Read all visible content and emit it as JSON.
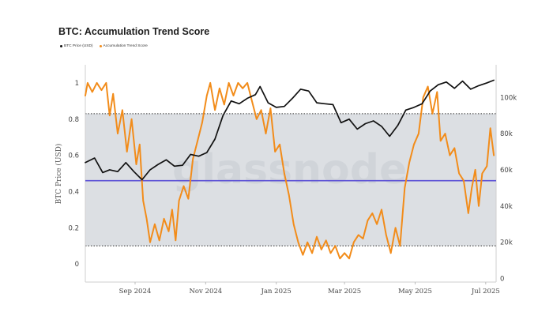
{
  "chart_data": {
    "type": "line",
    "title": "BTC: Accumulation Trend Score",
    "ylabel": "BTC Price (USD)",
    "watermark": "glassnode",
    "legend_placement": "top-left",
    "x_range": [
      "2024-07-20",
      "2025-07-10"
    ],
    "x_ticks": [
      {
        "date": "2024-09-01",
        "label": "Sep 2024"
      },
      {
        "date": "2024-11-01",
        "label": "Nov 2024"
      },
      {
        "date": "2025-01-01",
        "label": "Jan 2025"
      },
      {
        "date": "2025-03-01",
        "label": "Mar 2025"
      },
      {
        "date": "2025-05-01",
        "label": "May 2025"
      },
      {
        "date": "2025-07-01",
        "label": "Jul 2025"
      }
    ],
    "y_left": {
      "range": [
        -0.1,
        1.1
      ],
      "ticks": [
        0,
        0.2,
        0.4,
        0.6,
        0.8,
        1
      ]
    },
    "y_right": {
      "range": [
        -2000,
        118000
      ],
      "ticks": [
        {
          "value": 0,
          "label": "0"
        },
        {
          "value": 20000,
          "label": "20k"
        },
        {
          "value": 40000,
          "label": "40k"
        },
        {
          "value": 60000,
          "label": "60k"
        },
        {
          "value": 80000,
          "label": "80k"
        },
        {
          "value": 100000,
          "label": "100k"
        }
      ]
    },
    "band": {
      "lower": 0.1,
      "upper": 0.83,
      "color": "#dcdfe3"
    },
    "reference_line": {
      "value": 0.46,
      "color": "#5a4fd6"
    },
    "series": [
      {
        "name": "BTC Price (USD)",
        "axis": "right",
        "color": "#111111",
        "points": [
          [
            "2024-07-20",
            64000
          ],
          [
            "2024-07-28",
            66500
          ],
          [
            "2024-08-04",
            58500
          ],
          [
            "2024-08-10",
            60000
          ],
          [
            "2024-08-17",
            59000
          ],
          [
            "2024-08-24",
            64000
          ],
          [
            "2024-08-31",
            59000
          ],
          [
            "2024-09-07",
            54500
          ],
          [
            "2024-09-14",
            60000
          ],
          [
            "2024-09-21",
            63000
          ],
          [
            "2024-09-28",
            65500
          ],
          [
            "2024-10-05",
            62000
          ],
          [
            "2024-10-12",
            62500
          ],
          [
            "2024-10-19",
            68500
          ],
          [
            "2024-10-26",
            67500
          ],
          [
            "2024-11-02",
            69500
          ],
          [
            "2024-11-09",
            77000
          ],
          [
            "2024-11-16",
            90000
          ],
          [
            "2024-11-23",
            98000
          ],
          [
            "2024-11-30",
            96500
          ],
          [
            "2024-12-07",
            99500
          ],
          [
            "2024-12-14",
            101500
          ],
          [
            "2024-12-18",
            106000
          ],
          [
            "2024-12-25",
            97000
          ],
          [
            "2025-01-01",
            94500
          ],
          [
            "2025-01-08",
            95000
          ],
          [
            "2025-01-15",
            99500
          ],
          [
            "2025-01-22",
            104500
          ],
          [
            "2025-01-29",
            103500
          ],
          [
            "2025-02-05",
            97000
          ],
          [
            "2025-02-12",
            96500
          ],
          [
            "2025-02-19",
            96000
          ],
          [
            "2025-02-26",
            86000
          ],
          [
            "2025-03-05",
            88000
          ],
          [
            "2025-03-12",
            82500
          ],
          [
            "2025-03-19",
            85500
          ],
          [
            "2025-03-26",
            87000
          ],
          [
            "2025-04-02",
            84000
          ],
          [
            "2025-04-09",
            78500
          ],
          [
            "2025-04-16",
            84500
          ],
          [
            "2025-04-23",
            93000
          ],
          [
            "2025-04-30",
            94500
          ],
          [
            "2025-05-07",
            96500
          ],
          [
            "2025-05-14",
            103500
          ],
          [
            "2025-05-21",
            107000
          ],
          [
            "2025-05-28",
            108500
          ],
          [
            "2025-06-04",
            105000
          ],
          [
            "2025-06-11",
            109000
          ],
          [
            "2025-06-18",
            104500
          ],
          [
            "2025-06-25",
            106500
          ],
          [
            "2025-07-02",
            108000
          ],
          [
            "2025-07-08",
            109500
          ]
        ]
      },
      {
        "name": "Accumulation Trend Score",
        "axis": "left",
        "color": "#f28c1a",
        "points": [
          [
            "2024-07-20",
            0.93
          ],
          [
            "2024-07-22",
            1.0
          ],
          [
            "2024-07-26",
            0.95
          ],
          [
            "2024-07-30",
            1.0
          ],
          [
            "2024-08-03",
            0.96
          ],
          [
            "2024-08-07",
            1.0
          ],
          [
            "2024-08-10",
            0.82
          ],
          [
            "2024-08-13",
            0.94
          ],
          [
            "2024-08-17",
            0.72
          ],
          [
            "2024-08-21",
            0.85
          ],
          [
            "2024-08-25",
            0.62
          ],
          [
            "2024-08-29",
            0.8
          ],
          [
            "2024-09-02",
            0.55
          ],
          [
            "2024-09-05",
            0.66
          ],
          [
            "2024-09-08",
            0.35
          ],
          [
            "2024-09-11",
            0.25
          ],
          [
            "2024-09-14",
            0.12
          ],
          [
            "2024-09-18",
            0.22
          ],
          [
            "2024-09-22",
            0.13
          ],
          [
            "2024-09-26",
            0.25
          ],
          [
            "2024-09-30",
            0.18
          ],
          [
            "2024-10-03",
            0.3
          ],
          [
            "2024-10-06",
            0.13
          ],
          [
            "2024-10-09",
            0.35
          ],
          [
            "2024-10-13",
            0.43
          ],
          [
            "2024-10-17",
            0.36
          ],
          [
            "2024-10-21",
            0.58
          ],
          [
            "2024-10-25",
            0.68
          ],
          [
            "2024-10-29",
            0.78
          ],
          [
            "2024-11-02",
            0.93
          ],
          [
            "2024-11-05",
            1.0
          ],
          [
            "2024-11-09",
            0.85
          ],
          [
            "2024-11-13",
            0.97
          ],
          [
            "2024-11-17",
            0.88
          ],
          [
            "2024-11-21",
            1.0
          ],
          [
            "2024-11-25",
            0.93
          ],
          [
            "2024-11-29",
            1.0
          ],
          [
            "2024-12-03",
            0.97
          ],
          [
            "2024-12-07",
            1.0
          ],
          [
            "2024-12-11",
            0.9
          ],
          [
            "2024-12-15",
            0.8
          ],
          [
            "2024-12-19",
            0.85
          ],
          [
            "2024-12-23",
            0.72
          ],
          [
            "2024-12-27",
            0.86
          ],
          [
            "2024-12-31",
            0.62
          ],
          [
            "2025-01-04",
            0.66
          ],
          [
            "2025-01-08",
            0.5
          ],
          [
            "2025-01-12",
            0.38
          ],
          [
            "2025-01-16",
            0.22
          ],
          [
            "2025-01-20",
            0.12
          ],
          [
            "2025-01-24",
            0.05
          ],
          [
            "2025-01-28",
            0.12
          ],
          [
            "2025-02-01",
            0.06
          ],
          [
            "2025-02-05",
            0.15
          ],
          [
            "2025-02-09",
            0.08
          ],
          [
            "2025-02-13",
            0.13
          ],
          [
            "2025-02-17",
            0.06
          ],
          [
            "2025-02-21",
            0.1
          ],
          [
            "2025-02-25",
            0.03
          ],
          [
            "2025-03-01",
            0.06
          ],
          [
            "2025-03-05",
            0.03
          ],
          [
            "2025-03-09",
            0.12
          ],
          [
            "2025-03-13",
            0.16
          ],
          [
            "2025-03-17",
            0.14
          ],
          [
            "2025-03-21",
            0.24
          ],
          [
            "2025-03-25",
            0.28
          ],
          [
            "2025-03-29",
            0.22
          ],
          [
            "2025-04-02",
            0.3
          ],
          [
            "2025-04-06",
            0.16
          ],
          [
            "2025-04-10",
            0.06
          ],
          [
            "2025-04-14",
            0.2
          ],
          [
            "2025-04-18",
            0.1
          ],
          [
            "2025-04-22",
            0.42
          ],
          [
            "2025-04-26",
            0.56
          ],
          [
            "2025-04-30",
            0.66
          ],
          [
            "2025-05-04",
            0.72
          ],
          [
            "2025-05-08",
            0.92
          ],
          [
            "2025-05-12",
            0.98
          ],
          [
            "2025-05-16",
            0.83
          ],
          [
            "2025-05-20",
            0.95
          ],
          [
            "2025-05-23",
            0.68
          ],
          [
            "2025-05-27",
            0.72
          ],
          [
            "2025-05-31",
            0.6
          ],
          [
            "2025-06-04",
            0.64
          ],
          [
            "2025-06-08",
            0.5
          ],
          [
            "2025-06-12",
            0.46
          ],
          [
            "2025-06-16",
            0.28
          ],
          [
            "2025-06-19",
            0.42
          ],
          [
            "2025-06-22",
            0.52
          ],
          [
            "2025-06-25",
            0.32
          ],
          [
            "2025-06-28",
            0.5
          ],
          [
            "2025-07-02",
            0.54
          ],
          [
            "2025-07-05",
            0.75
          ],
          [
            "2025-07-08",
            0.6
          ]
        ]
      }
    ]
  }
}
